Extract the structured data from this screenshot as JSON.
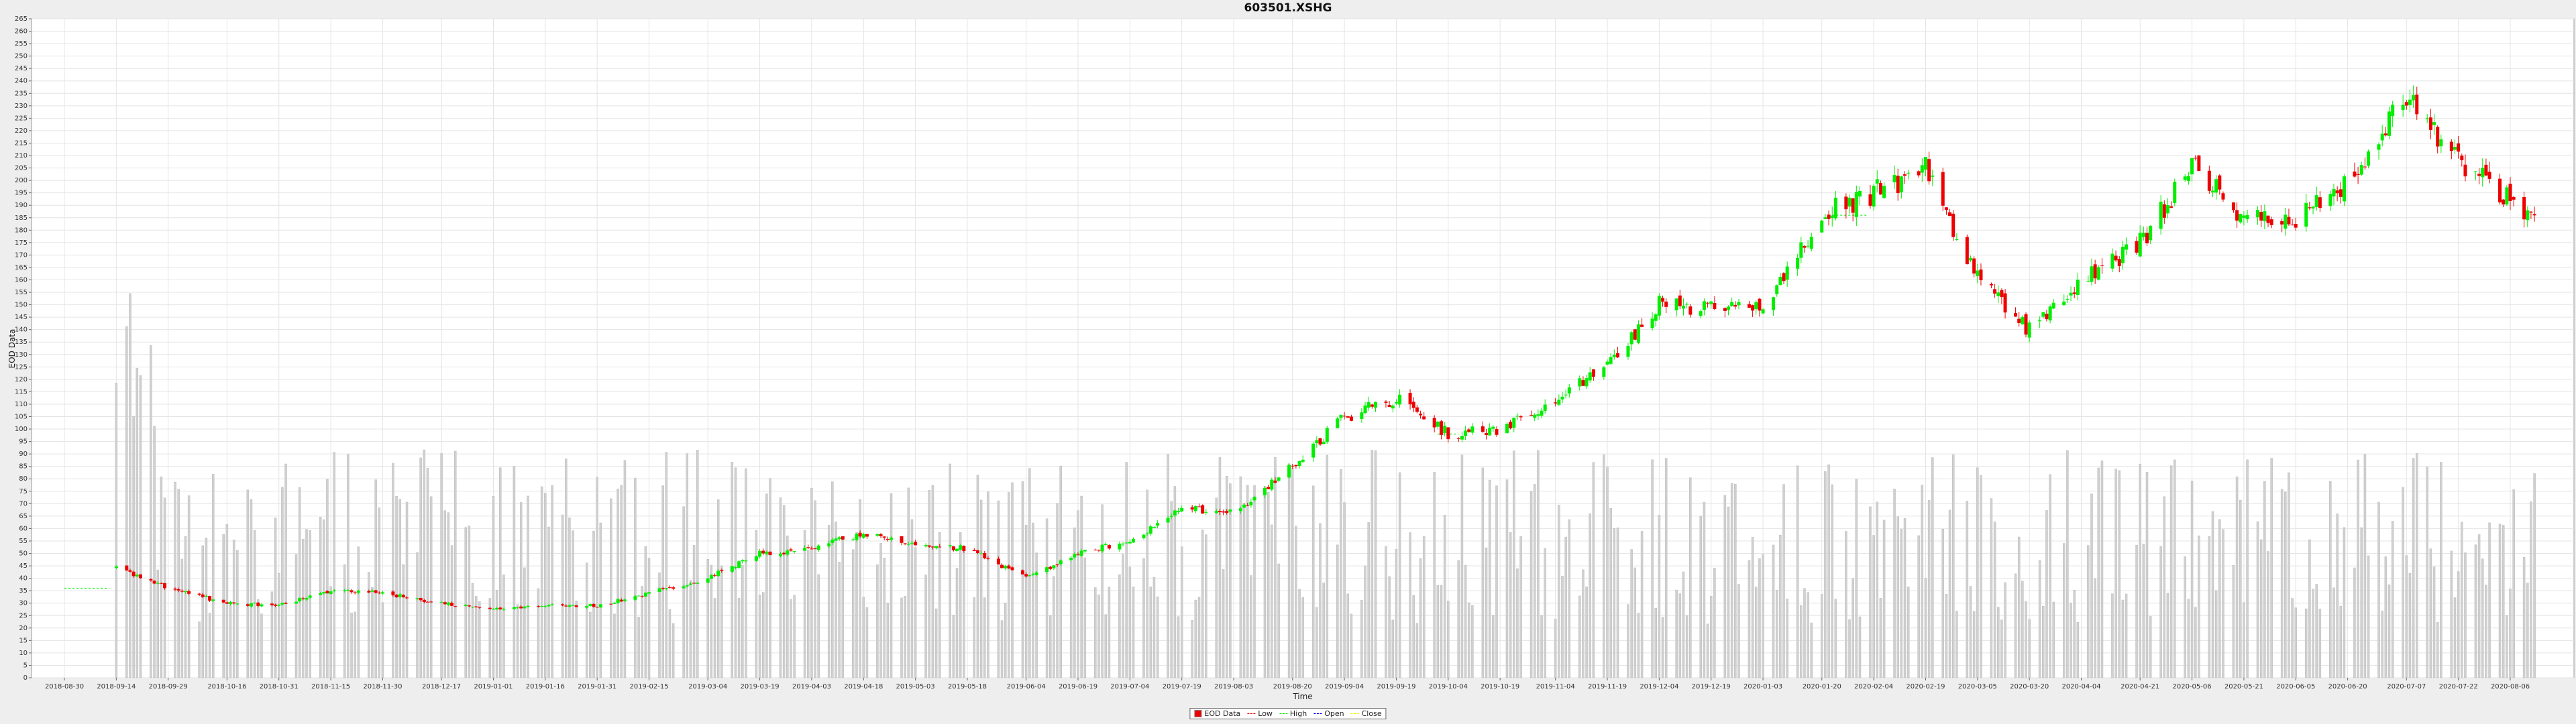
{
  "chart_data": {
    "type": "candlestick",
    "title": "603501.XSHG",
    "xlabel": "Time",
    "ylabel": "EOD Data",
    "ylim": [
      0,
      265
    ],
    "y_tick_step": 5,
    "x_ticks": [
      "2018-08-30",
      "2018-09-14",
      "2018-09-29",
      "2018-10-16",
      "2018-10-31",
      "2018-11-15",
      "2018-11-30",
      "2018-12-17",
      "2019-01-01",
      "2019-01-16",
      "2019-01-31",
      "2019-02-15",
      "2019-03-04",
      "2019-03-19",
      "2019-04-03",
      "2019-04-18",
      "2019-05-03",
      "2019-05-18",
      "2019-06-04",
      "2019-06-19",
      "2019-07-04",
      "2019-07-19",
      "2019-08-03",
      "2019-08-20",
      "2019-09-04",
      "2019-09-19",
      "2019-10-04",
      "2019-10-19",
      "2019-11-04",
      "2019-11-19",
      "2019-12-04",
      "2019-12-19",
      "2020-01-03",
      "2020-01-20",
      "2020-02-04",
      "2020-02-19",
      "2020-03-05",
      "2020-03-20",
      "2020-04-04",
      "2020-04-21",
      "2020-05-06",
      "2020-05-21",
      "2020-06-05",
      "2020-06-20",
      "2020-07-07",
      "2020-07-22",
      "2020-08-06"
    ],
    "grid": true,
    "legend_position": "bottom-center",
    "legend": [
      "EOD Data",
      "Low",
      "High",
      "Open",
      "Close"
    ],
    "colors": {
      "up": "#00ee00",
      "down": "#ee0000",
      "volume": "#d0d0d0",
      "grid": "#e4e4e4",
      "background": "#ffffff"
    },
    "anchors": [
      [
        "2018-09-14",
        44
      ],
      [
        "2018-09-29",
        36
      ],
      [
        "2018-10-16",
        30
      ],
      [
        "2018-10-31",
        29
      ],
      [
        "2018-11-15",
        35
      ],
      [
        "2018-11-30",
        34
      ],
      [
        "2018-12-17",
        30
      ],
      [
        "2019-01-01",
        28
      ],
      [
        "2019-01-16",
        29
      ],
      [
        "2019-01-31",
        29
      ],
      [
        "2019-02-15",
        34
      ],
      [
        "2019-03-04",
        40
      ],
      [
        "2019-03-19",
        50
      ],
      [
        "2019-04-03",
        52
      ],
      [
        "2019-04-18",
        58
      ],
      [
        "2019-05-03",
        54
      ],
      [
        "2019-05-18",
        52
      ],
      [
        "2019-06-04",
        40
      ],
      [
        "2019-06-19",
        50
      ],
      [
        "2019-07-04",
        55
      ],
      [
        "2019-07-19",
        68
      ],
      [
        "2019-08-03",
        66
      ],
      [
        "2019-08-20",
        85
      ],
      [
        "2019-09-04",
        105
      ],
      [
        "2019-09-19",
        112
      ],
      [
        "2019-10-04",
        98
      ],
      [
        "2019-10-19",
        100
      ],
      [
        "2019-11-04",
        112
      ],
      [
        "2019-11-19",
        125
      ],
      [
        "2019-12-04",
        150
      ],
      [
        "2019-12-19",
        148
      ],
      [
        "2020-01-03",
        150
      ],
      [
        "2020-01-20",
        186
      ],
      [
        "2020-02-04",
        195
      ],
      [
        "2020-02-19",
        205
      ],
      [
        "2020-03-05",
        160
      ],
      [
        "2020-03-20",
        140
      ],
      [
        "2020-04-04",
        160
      ],
      [
        "2020-04-21",
        175
      ],
      [
        "2020-05-06",
        205
      ],
      [
        "2020-05-21",
        186
      ],
      [
        "2020-06-05",
        185
      ],
      [
        "2020-06-20",
        200
      ],
      [
        "2020-07-07",
        235
      ],
      [
        "2020-07-22",
        208
      ],
      [
        "2020-08-06",
        192
      ],
      [
        "2020-08-14",
        183
      ]
    ],
    "gaps": [
      [
        "2018-08-30",
        "2018-09-12",
        36
      ],
      [
        "2019-10-01",
        "2019-10-07",
        98
      ],
      [
        "2020-01-23",
        "2020-02-02",
        186
      ]
    ],
    "volume_scale": "relative"
  }
}
